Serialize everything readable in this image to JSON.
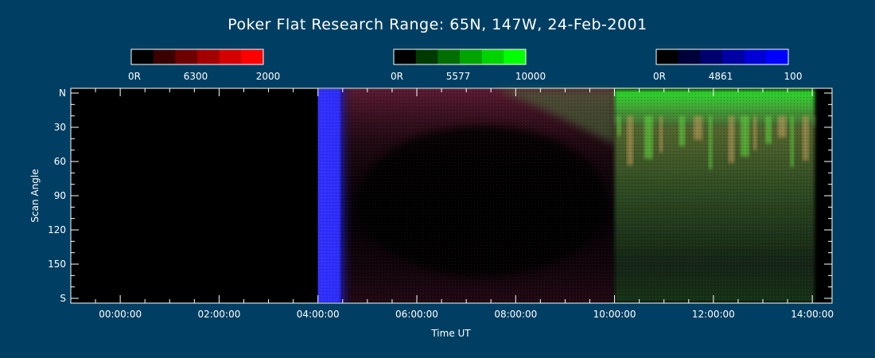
{
  "chart_data": {
    "type": "heatmap",
    "title": "Poker Flat Research Range: 65N, 147W, 24-Feb-2001",
    "xlabel": "Time UT",
    "ylabel": "Scan Angle",
    "x_ticks": [
      "00:00:00",
      "02:00:00",
      "04:00:00",
      "06:00:00",
      "08:00:00",
      "10:00:00",
      "12:00:00",
      "14:00:00"
    ],
    "x_tick_hours": [
      0,
      2,
      4,
      6,
      8,
      10,
      12,
      14
    ],
    "xlim_hours": [
      -1,
      14.4
    ],
    "y_ticks": [
      "N",
      "30",
      "60",
      "90",
      "120",
      "150",
      "S"
    ],
    "y_tick_values": [
      0,
      30,
      60,
      90,
      120,
      150,
      180
    ],
    "ylim": [
      0,
      180
    ],
    "colorbars": [
      {
        "name": "6300",
        "min_label": "0R",
        "max_label": "2000",
        "colors": [
          "#000000",
          "#3a0000",
          "#6e0000",
          "#a30000",
          "#d40000",
          "#ff0000"
        ],
        "channel": "red"
      },
      {
        "name": "5577",
        "min_label": "0R",
        "max_label": "10000",
        "colors": [
          "#000000",
          "#003a00",
          "#006e00",
          "#00a300",
          "#00d400",
          "#00ff00"
        ],
        "channel": "green"
      },
      {
        "name": "4861",
        "min_label": "0R",
        "max_label": "100",
        "colors": [
          "#000000",
          "#00003a",
          "#00006e",
          "#0000a3",
          "#0000d4",
          "#0000ff"
        ],
        "channel": "blue"
      }
    ],
    "data_start_hour": 4.0,
    "data_end_hour": 14.05,
    "features": [
      {
        "channel": "blue",
        "hours": [
          4.0,
          4.5
        ],
        "scan": [
          0,
          180
        ],
        "level": "high"
      },
      {
        "channel": "red",
        "hours": [
          4.0,
          10.0
        ],
        "scan": [
          0,
          180
        ],
        "level": "low"
      },
      {
        "channel": "green",
        "hours": [
          10.0,
          14.05
        ],
        "scan": [
          0,
          60
        ],
        "level": "high"
      },
      {
        "channel": "green",
        "hours": [
          10.0,
          14.05
        ],
        "scan": [
          60,
          180
        ],
        "level": "moderate"
      }
    ]
  }
}
